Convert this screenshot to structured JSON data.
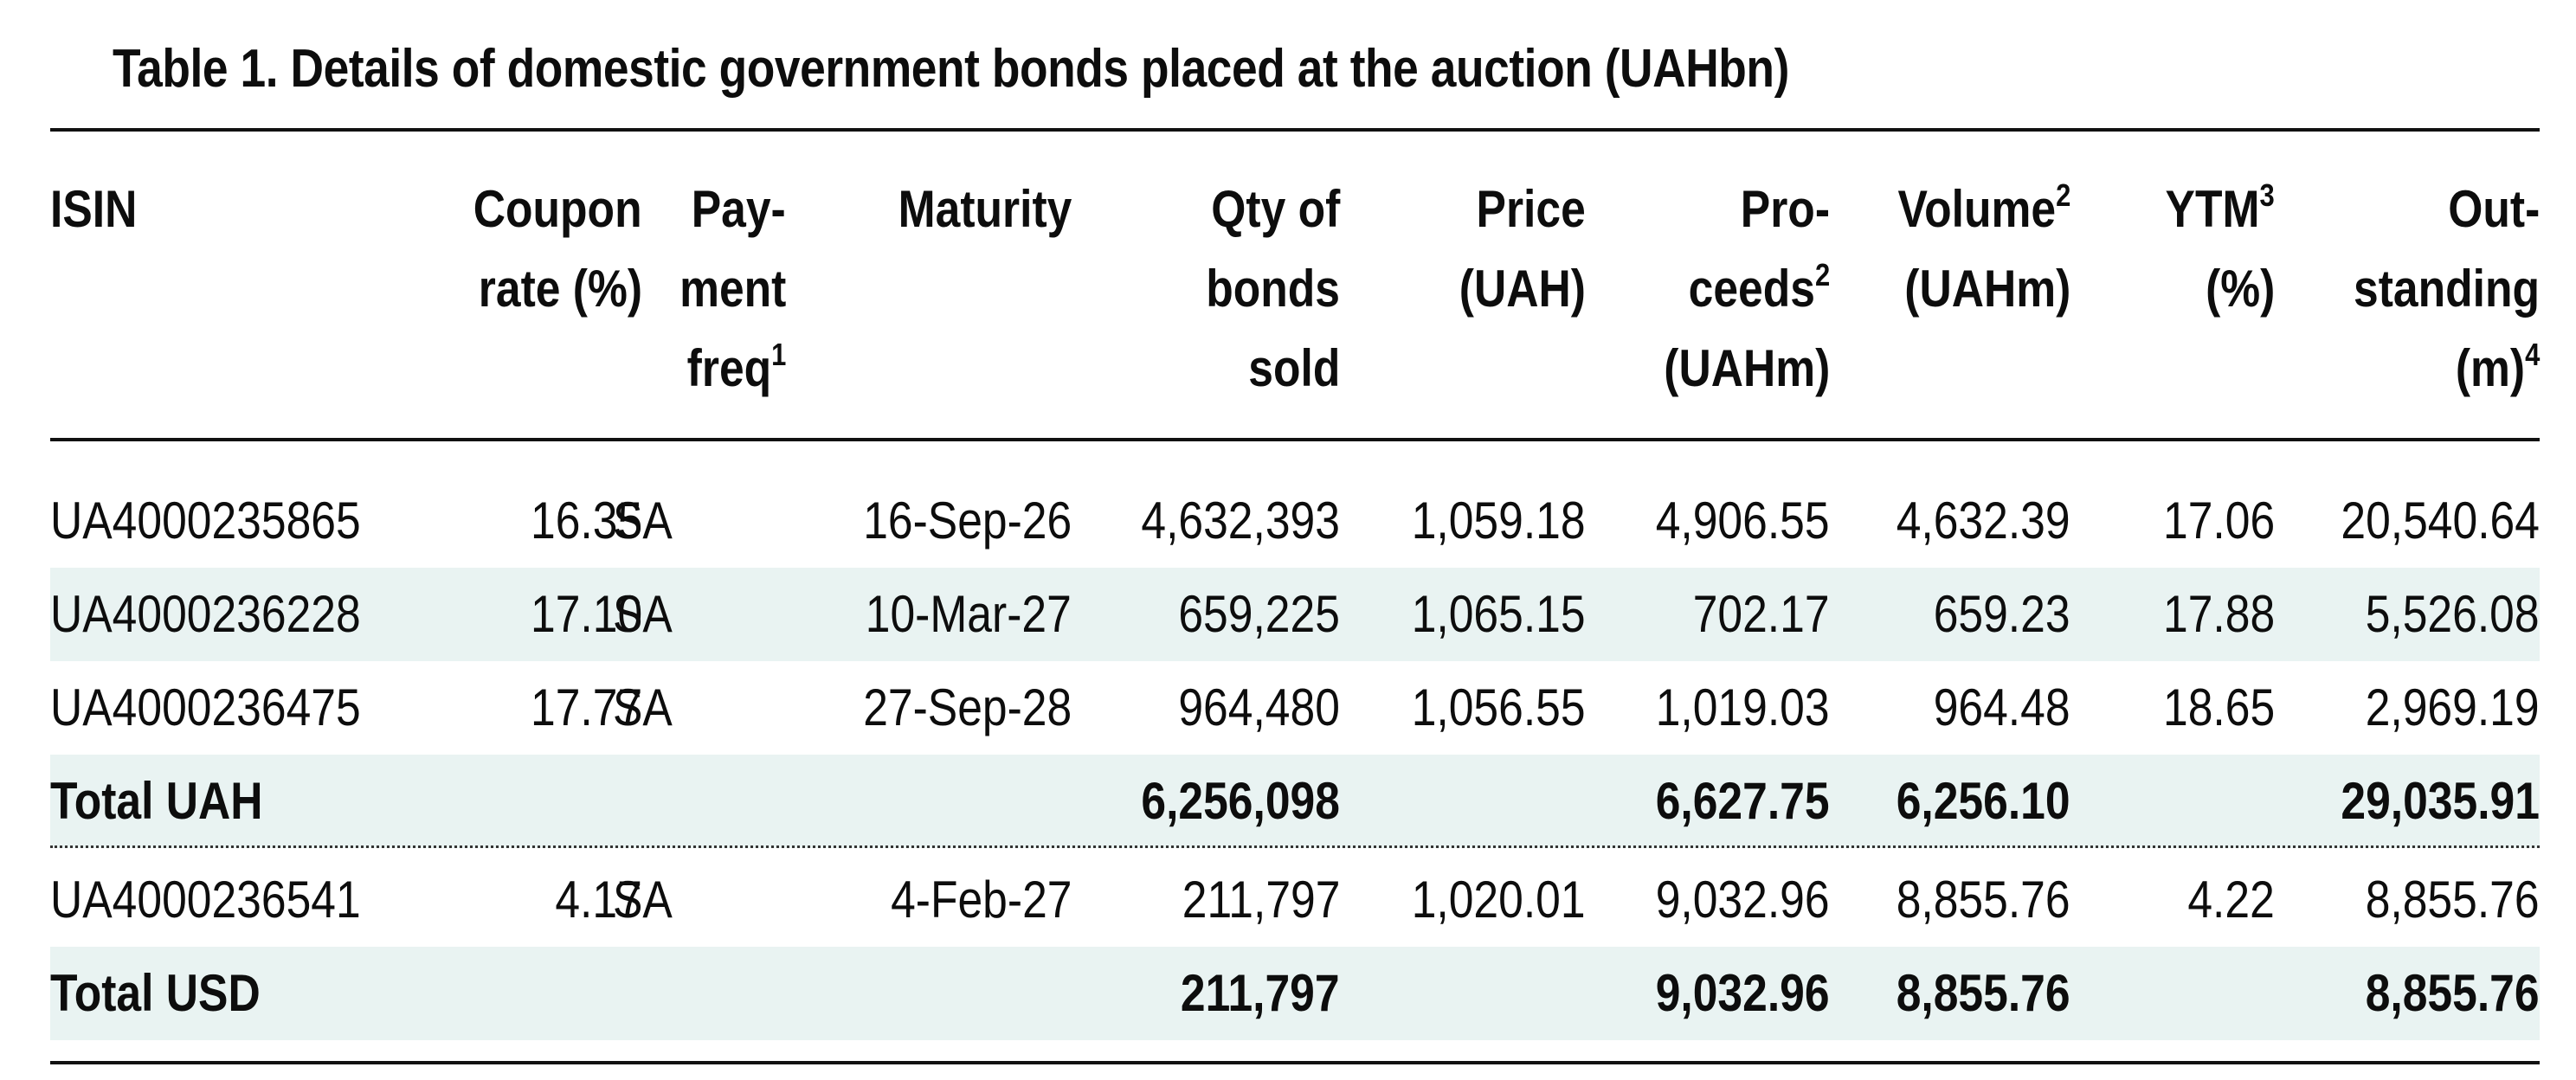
{
  "title": "Table 1. Details of domestic government bonds placed at the auction (UAHbn)",
  "headers": {
    "isin": "ISIN",
    "coupon_1": "Coupon",
    "coupon_2": "rate (%)",
    "payfreq_1": "Pay-",
    "payfreq_2": "ment",
    "payfreq_3": "freq",
    "payfreq_sup": "1",
    "maturity": "Maturity",
    "qty_1": "Qty of",
    "qty_2": "bonds",
    "qty_3": "sold",
    "price_1": "Price",
    "price_2": "(UAH)",
    "proceeds_1": "Pro-",
    "proceeds_2": "ceeds",
    "proceeds_sup": "2",
    "proceeds_3": "(UAHm)",
    "volume_1": "Volume",
    "volume_sup": "2",
    "volume_2": "(UAHm)",
    "ytm_1": "YTM",
    "ytm_sup": "3",
    "ytm_2": "(%)",
    "out_1": "Out-",
    "out_2": "standing",
    "out_3": "(m)",
    "out_sup": "4"
  },
  "rows": [
    {
      "isin": "UA4000235865",
      "coupon": "16.35",
      "freq": "SA",
      "maturity": "16-Sep-26",
      "qty": "4,632,393",
      "price": "1,059.18",
      "proceeds": "4,906.55",
      "volume": "4,632.39",
      "ytm": "17.06",
      "outstanding": "20,540.64"
    },
    {
      "isin": "UA4000236228",
      "coupon": "17.10",
      "freq": "SA",
      "maturity": "10-Mar-27",
      "qty": "659,225",
      "price": "1,065.15",
      "proceeds": "702.17",
      "volume": "659.23",
      "ytm": "17.88",
      "outstanding": "5,526.08"
    },
    {
      "isin": "UA4000236475",
      "coupon": "17.77",
      "freq": "SA",
      "maturity": "27-Sep-28",
      "qty": "964,480",
      "price": "1,056.55",
      "proceeds": "1,019.03",
      "volume": "964.48",
      "ytm": "18.65",
      "outstanding": "2,969.19"
    }
  ],
  "total_uah": {
    "label": "Total UAH",
    "qty": "6,256,098",
    "proceeds": "6,627.75",
    "volume": "6,256.10",
    "outstanding": "29,035.91"
  },
  "usd_row": {
    "isin": "UA4000236541",
    "coupon": "4.17",
    "freq": "SA",
    "maturity": "4-Feb-27",
    "qty": "211,797",
    "price": "1,020.01",
    "proceeds": "9,032.96",
    "volume": "8,855.76",
    "ytm": "4.22",
    "outstanding": "8,855.76"
  },
  "total_usd": {
    "label": "Total USD",
    "qty": "211,797",
    "proceeds": "9,032.96",
    "volume": "8,855.76",
    "outstanding": "8,855.76"
  }
}
